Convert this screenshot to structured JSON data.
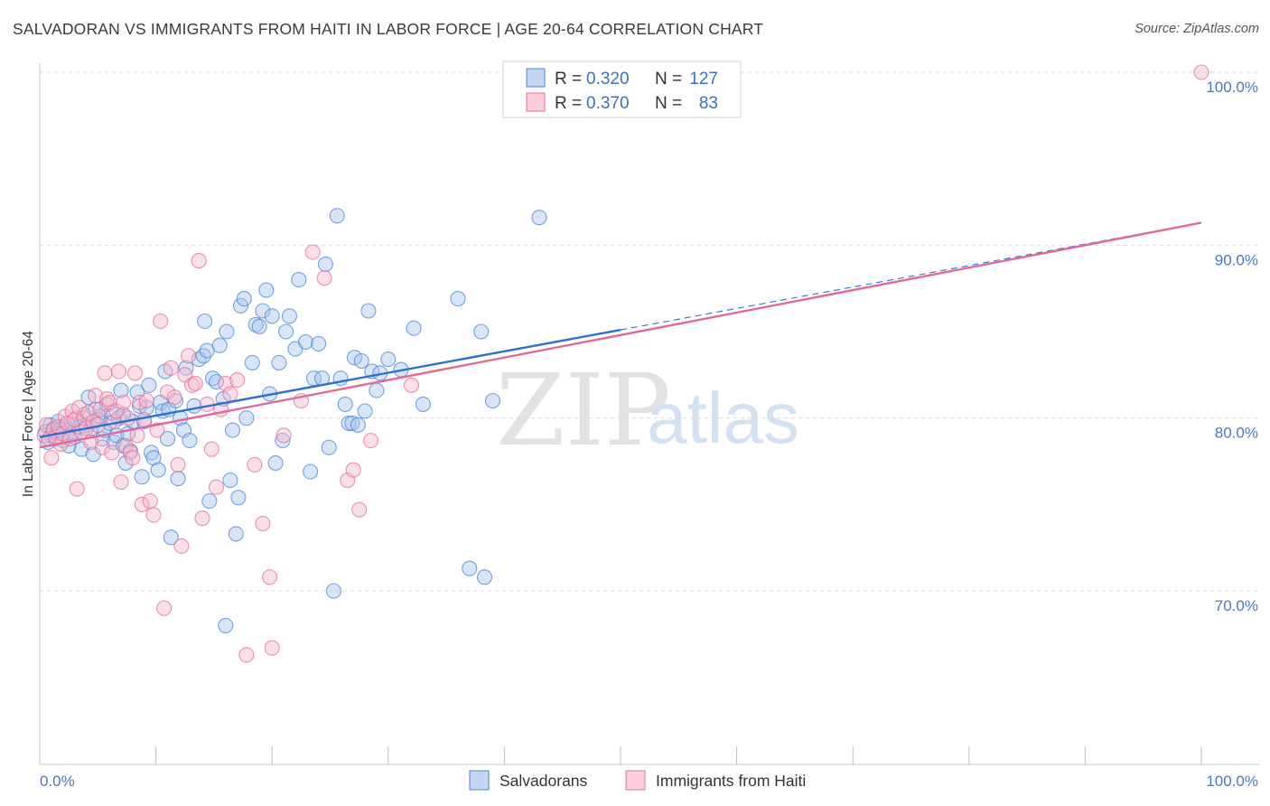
{
  "title": "SALVADORAN VS IMMIGRANTS FROM HAITI IN LABOR FORCE | AGE 20-64 CORRELATION CHART",
  "source": "Source: ZipAtlas.com",
  "watermark": {
    "part1": "ZIP",
    "part2": "atlas"
  },
  "colors": {
    "blue": "#4a86d8",
    "blue_fill": "#a9c6ee",
    "pink": "#e0709a",
    "pink_fill": "#f6b8cc",
    "tick_text": "#4a76c4",
    "grid": "#dcdcdc"
  },
  "legend": {
    "r_label": "R =",
    "n_label": "N =",
    "rows": [
      {
        "r": "0.320",
        "n": "127"
      },
      {
        "r": "0.370",
        "n": "83"
      }
    ]
  },
  "chart_data": {
    "type": "scatter",
    "title": "SALVADORAN VS IMMIGRANTS FROM HAITI IN LABOR FORCE | AGE 20-64 CORRELATION CHART",
    "xlabel": "",
    "ylabel": "In Labor Force | Age 20-64",
    "x_tick_labels": [
      "0.0%",
      "100.0%"
    ],
    "y_tick_labels": [
      "70.0%",
      "80.0%",
      "90.0%",
      "100.0%"
    ],
    "y_ticks": [
      70,
      80,
      90,
      100
    ],
    "xlim": [
      0,
      100
    ],
    "ylim": [
      60.5,
      101
    ],
    "grid": "horizontal dashed",
    "legend_position": "top-center",
    "series": [
      {
        "name": "Salvadorans",
        "r": 0.32,
        "n": 127,
        "trend": {
          "x0": 0,
          "y0": 78.9,
          "x1": 50,
          "y1": 85.1,
          "dashed_to_x": 100,
          "dashed_to_y": 91.3
        },
        "points": [
          [
            0.5,
            79.2
          ],
          [
            0.7,
            78.6
          ],
          [
            0.9,
            79.6
          ],
          [
            1.0,
            79.0
          ],
          [
            1.2,
            79.4
          ],
          [
            1.3,
            78.8
          ],
          [
            1.5,
            79.1
          ],
          [
            1.6,
            79.8
          ],
          [
            1.8,
            79.3
          ],
          [
            2.0,
            78.7
          ],
          [
            2.1,
            79.5
          ],
          [
            2.3,
            79.0
          ],
          [
            2.5,
            78.4
          ],
          [
            2.7,
            79.7
          ],
          [
            2.9,
            79.2
          ],
          [
            3.0,
            78.9
          ],
          [
            3.2,
            80.0
          ],
          [
            3.4,
            79.5
          ],
          [
            3.6,
            78.2
          ],
          [
            3.8,
            80.2
          ],
          [
            4.0,
            79.6
          ],
          [
            4.2,
            81.2
          ],
          [
            4.4,
            79.4
          ],
          [
            4.6,
            77.9
          ],
          [
            4.8,
            80.5
          ],
          [
            5.0,
            79.9
          ],
          [
            5.2,
            80.1
          ],
          [
            5.4,
            78.8
          ],
          [
            5.6,
            79.3
          ],
          [
            5.8,
            80.8
          ],
          [
            6.0,
            79.7
          ],
          [
            6.2,
            80.3
          ],
          [
            6.4,
            78.6
          ],
          [
            6.6,
            79.0
          ],
          [
            6.8,
            80.0
          ],
          [
            7.0,
            81.6
          ],
          [
            7.2,
            78.4
          ],
          [
            7.4,
            77.4
          ],
          [
            7.6,
            79.1
          ],
          [
            7.8,
            78.1
          ],
          [
            8.0,
            79.8
          ],
          [
            8.4,
            81.5
          ],
          [
            8.6,
            80.7
          ],
          [
            8.8,
            76.6
          ],
          [
            9.0,
            79.8
          ],
          [
            9.2,
            80.6
          ],
          [
            9.6,
            78.0
          ],
          [
            9.8,
            77.7
          ],
          [
            10.2,
            77.0
          ],
          [
            10.4,
            80.9
          ],
          [
            10.6,
            80.4
          ],
          [
            10.8,
            82.7
          ],
          [
            11.1,
            80.5
          ],
          [
            11.3,
            73.1
          ],
          [
            11.7,
            81.0
          ],
          [
            11.9,
            76.5
          ],
          [
            12.1,
            80.0
          ],
          [
            12.4,
            79.3
          ],
          [
            12.6,
            82.9
          ],
          [
            12.9,
            78.7
          ],
          [
            13.3,
            80.7
          ],
          [
            13.7,
            83.4
          ],
          [
            14.1,
            83.6
          ],
          [
            14.4,
            83.9
          ],
          [
            14.6,
            75.2
          ],
          [
            14.9,
            82.3
          ],
          [
            15.2,
            82.1
          ],
          [
            15.5,
            84.2
          ],
          [
            15.8,
            81.1
          ],
          [
            16.1,
            85.0
          ],
          [
            16.4,
            76.4
          ],
          [
            16.6,
            79.3
          ],
          [
            16.9,
            73.3
          ],
          [
            17.1,
            75.4
          ],
          [
            17.3,
            86.5
          ],
          [
            17.6,
            86.9
          ],
          [
            17.8,
            80.0
          ],
          [
            18.3,
            83.2
          ],
          [
            18.6,
            85.4
          ],
          [
            18.9,
            85.3
          ],
          [
            19.2,
            86.2
          ],
          [
            19.5,
            87.4
          ],
          [
            19.8,
            81.4
          ],
          [
            20.0,
            85.9
          ],
          [
            20.3,
            77.4
          ],
          [
            20.6,
            83.2
          ],
          [
            20.9,
            78.7
          ],
          [
            21.2,
            85.0
          ],
          [
            21.5,
            85.9
          ],
          [
            22.0,
            84.0
          ],
          [
            22.3,
            88.0
          ],
          [
            22.9,
            84.4
          ],
          [
            23.3,
            76.9
          ],
          [
            23.6,
            82.3
          ],
          [
            24.0,
            84.3
          ],
          [
            24.3,
            82.3
          ],
          [
            24.6,
            88.9
          ],
          [
            24.9,
            78.3
          ],
          [
            25.3,
            70.0
          ],
          [
            25.6,
            91.7
          ],
          [
            25.9,
            82.3
          ],
          [
            26.3,
            80.8
          ],
          [
            26.6,
            79.7
          ],
          [
            26.9,
            79.7
          ],
          [
            27.1,
            83.5
          ],
          [
            27.4,
            79.6
          ],
          [
            27.7,
            83.3
          ],
          [
            28.0,
            80.4
          ],
          [
            28.3,
            86.2
          ],
          [
            28.6,
            82.7
          ],
          [
            29.0,
            81.6
          ],
          [
            29.3,
            82.6
          ],
          [
            30.0,
            83.4
          ],
          [
            31.1,
            82.8
          ],
          [
            32.2,
            85.2
          ],
          [
            33.0,
            80.8
          ],
          [
            36.0,
            86.9
          ],
          [
            37.0,
            71.3
          ],
          [
            38.0,
            85.0
          ],
          [
            38.3,
            70.8
          ],
          [
            39.0,
            81.0
          ],
          [
            43.0,
            91.6
          ],
          [
            16.0,
            68.0
          ],
          [
            14.2,
            85.6
          ],
          [
            7.2,
            80.2
          ],
          [
            11.0,
            78.8
          ],
          [
            9.4,
            81.9
          ]
        ]
      },
      {
        "name": "Immigrants from Haiti",
        "r": 0.37,
        "n": 83,
        "trend": {
          "x0": 0,
          "y0": 78.3,
          "x1": 100,
          "y1": 91.3
        },
        "points": [
          [
            0.4,
            79.0
          ],
          [
            0.6,
            79.6
          ],
          [
            0.8,
            78.8
          ],
          [
            1.0,
            77.7
          ],
          [
            1.2,
            79.3
          ],
          [
            1.4,
            78.9
          ],
          [
            1.6,
            79.5
          ],
          [
            1.8,
            78.5
          ],
          [
            2.0,
            79.1
          ],
          [
            2.2,
            80.1
          ],
          [
            2.4,
            79.7
          ],
          [
            2.6,
            78.8
          ],
          [
            2.8,
            80.4
          ],
          [
            3.0,
            79.9
          ],
          [
            3.2,
            75.9
          ],
          [
            3.4,
            80.6
          ],
          [
            3.6,
            79.2
          ],
          [
            3.8,
            80.0
          ],
          [
            4.0,
            79.4
          ],
          [
            4.2,
            80.3
          ],
          [
            4.4,
            78.6
          ],
          [
            4.6,
            79.8
          ],
          [
            4.8,
            81.3
          ],
          [
            5.0,
            79.6
          ],
          [
            5.2,
            80.5
          ],
          [
            5.4,
            78.3
          ],
          [
            5.6,
            82.6
          ],
          [
            5.8,
            81.1
          ],
          [
            6.0,
            80.9
          ],
          [
            6.2,
            78.0
          ],
          [
            6.4,
            79.8
          ],
          [
            6.6,
            80.4
          ],
          [
            6.8,
            82.7
          ],
          [
            7.0,
            76.3
          ],
          [
            7.2,
            80.9
          ],
          [
            7.4,
            78.4
          ],
          [
            7.6,
            80.0
          ],
          [
            7.8,
            78.0
          ],
          [
            8.0,
            77.7
          ],
          [
            8.2,
            82.6
          ],
          [
            8.4,
            79.0
          ],
          [
            8.6,
            80.9
          ],
          [
            8.8,
            75.0
          ],
          [
            9.0,
            79.9
          ],
          [
            9.2,
            81.0
          ],
          [
            9.5,
            75.2
          ],
          [
            9.8,
            74.4
          ],
          [
            10.1,
            79.3
          ],
          [
            10.4,
            85.6
          ],
          [
            10.7,
            69.0
          ],
          [
            11.0,
            81.5
          ],
          [
            11.3,
            82.9
          ],
          [
            11.6,
            81.2
          ],
          [
            11.9,
            77.3
          ],
          [
            12.2,
            72.6
          ],
          [
            12.5,
            82.5
          ],
          [
            12.8,
            83.6
          ],
          [
            13.1,
            81.9
          ],
          [
            13.4,
            82.0
          ],
          [
            13.7,
            89.1
          ],
          [
            14.0,
            74.2
          ],
          [
            14.4,
            80.8
          ],
          [
            14.8,
            78.2
          ],
          [
            15.2,
            76.0
          ],
          [
            15.6,
            80.5
          ],
          [
            16.0,
            82.0
          ],
          [
            16.4,
            81.4
          ],
          [
            17.0,
            82.2
          ],
          [
            17.8,
            66.3
          ],
          [
            18.5,
            77.3
          ],
          [
            19.2,
            73.9
          ],
          [
            19.8,
            70.8
          ],
          [
            20.0,
            66.7
          ],
          [
            21.0,
            79.0
          ],
          [
            22.5,
            81.0
          ],
          [
            23.5,
            89.6
          ],
          [
            24.5,
            88.1
          ],
          [
            26.5,
            76.4
          ],
          [
            27.0,
            77.0
          ],
          [
            27.5,
            74.7
          ],
          [
            28.5,
            78.7
          ],
          [
            32.0,
            81.9
          ],
          [
            100.0,
            100.0
          ]
        ]
      }
    ]
  }
}
